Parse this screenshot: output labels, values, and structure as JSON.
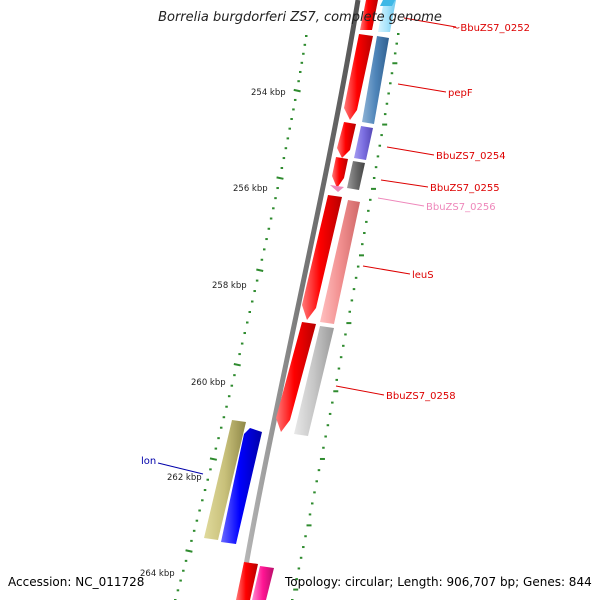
{
  "title": "Borrelia burgdorferi ZS7, complete genome",
  "footer": {
    "accession": "Accession: NC_011728",
    "summary": "Topology: circular; Length: 906,707 bp; Genes: 844"
  },
  "scale_labels": [
    "254 kbp",
    "256 kbp",
    "258 kbp",
    "260 kbp",
    "262 kbp",
    "264 kbp"
  ],
  "genes": [
    {
      "label": "BbuZS7_0252",
      "color": "#dd0000"
    },
    {
      "label": "pepF",
      "color": "#dd0000"
    },
    {
      "label": "BbuZS7_0254",
      "color": "#dd0000"
    },
    {
      "label": "BbuZS7_0255",
      "color": "#dd0000"
    },
    {
      "label": "BbuZS7_0256",
      "color": "#ee88bb"
    },
    {
      "label": "leuS",
      "color": "#dd0000"
    },
    {
      "label": "BbuZS7_0258",
      "color": "#dd0000"
    },
    {
      "label": "lon",
      "color": "#0000aa"
    }
  ],
  "colors": {
    "backbone": "#777777",
    "forward_strand": "#ff0000",
    "reverse_strand": "#0000ff",
    "tick": "#2e8b2e"
  }
}
